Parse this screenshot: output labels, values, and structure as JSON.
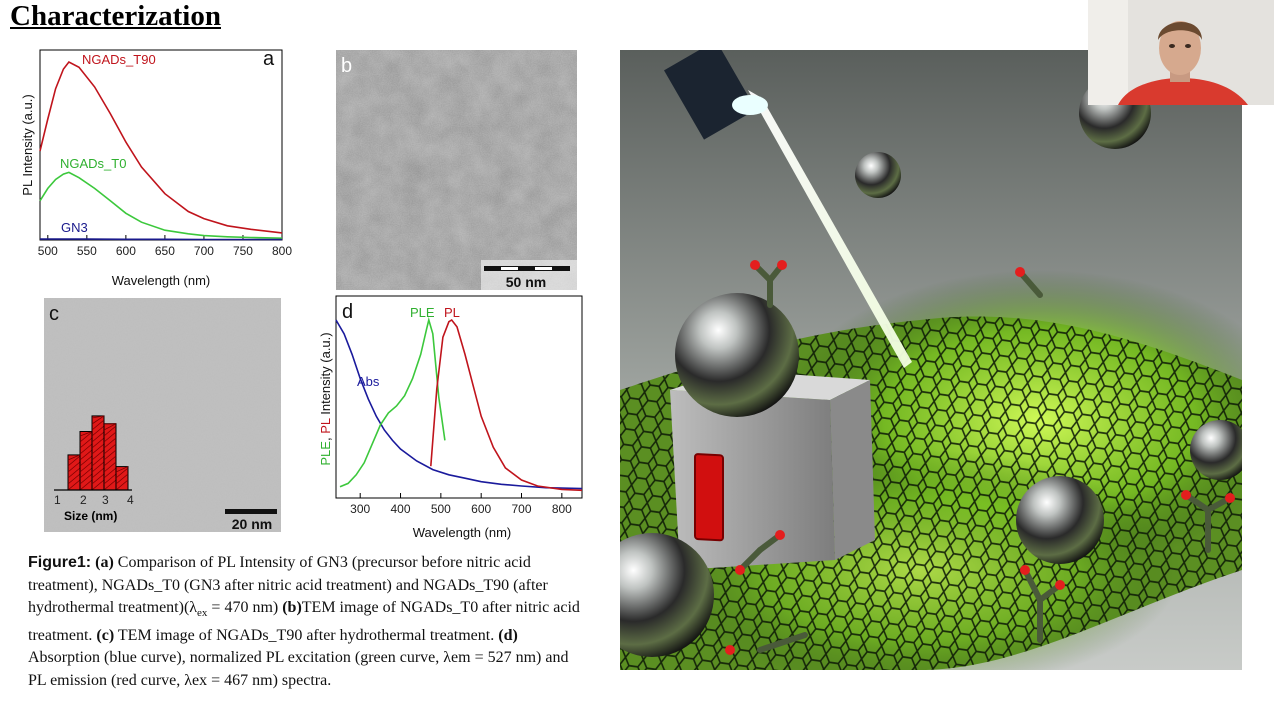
{
  "slide": {
    "title": "Characterization"
  },
  "figure": {
    "panel_a": {
      "letter": "a",
      "xlabel": "Wavelength (nm)",
      "ylabel": "PL Intensity (a.u.)",
      "xticks": [
        "500",
        "550",
        "600",
        "650",
        "700",
        "750",
        "800"
      ],
      "series_labels": [
        "NGADs_T90",
        "NGADs_T0",
        "GN3"
      ]
    },
    "panel_b": {
      "letter": "b",
      "scale": "50 nm"
    },
    "panel_c": {
      "letter": "c",
      "scale": "20 nm",
      "hist_xlabel": "Size (nm)",
      "hist_ticks": [
        "1",
        "2",
        "3",
        "4"
      ]
    },
    "panel_d": {
      "letter": "d",
      "xlabel": "Wavelength (nm)",
      "ylabel_ple": "PLE",
      "ylabel_sep": ", ",
      "ylabel_pl": "PL",
      "ylabel_rest": " Intensity (a.u.)",
      "xticks": [
        "300",
        "400",
        "500",
        "600",
        "700",
        "800"
      ],
      "labels": {
        "abs": "Abs",
        "ple": "PLE",
        "pl": "PL"
      }
    }
  },
  "caption": {
    "head": "Figure1:",
    "a_tag": "(a)",
    "a_text": " Comparison of PL Intensity of GN3 (precursor before nitric acid treatment), NGADs_T0 (GN3 after nitric acid treatment) and NGADs_T90 (after hydrothermal treatment)(λ",
    "a_sub": "ex",
    "a_tail": " = 470 nm) ",
    "b_tag": "(b)",
    "b_text": "TEM image of NGADs_T0 after nitric acid treatment. ",
    "c_tag": "(c)",
    "c_text": " TEM image of NGADs_T90 after hydrothermal treatment. ",
    "d_tag": "(d)",
    "d_text": " Absorption (blue curve), normalized PL excitation (green curve, λem = 527 nm) and PL emission (red curve, λex = 467 nm) spectra."
  },
  "chart_data": [
    {
      "type": "line",
      "panel": "a",
      "xlabel": "Wavelength (nm)",
      "ylabel": "PL Intensity (a.u.)",
      "xlim": [
        490,
        800
      ],
      "ylim": [
        0,
        1
      ],
      "series": [
        {
          "name": "NGADs_T90",
          "color": "#c0141c",
          "x": [
            490,
            500,
            510,
            520,
            527,
            540,
            560,
            580,
            600,
            620,
            650,
            680,
            700,
            730,
            760,
            800
          ],
          "y": [
            0.5,
            0.68,
            0.85,
            0.96,
            1.0,
            0.97,
            0.86,
            0.71,
            0.55,
            0.41,
            0.26,
            0.16,
            0.12,
            0.08,
            0.06,
            0.04
          ]
        },
        {
          "name": "NGADs_T0",
          "color": "#3cc83c",
          "x": [
            490,
            500,
            510,
            520,
            527,
            540,
            560,
            580,
            600,
            620,
            650,
            680,
            700,
            730,
            760,
            800
          ],
          "y": [
            0.22,
            0.29,
            0.34,
            0.37,
            0.38,
            0.35,
            0.29,
            0.22,
            0.15,
            0.1,
            0.055,
            0.035,
            0.025,
            0.018,
            0.014,
            0.01
          ]
        },
        {
          "name": "GN3",
          "color": "#1a1a8c",
          "x": [
            490,
            550,
            600,
            650,
            700,
            750,
            800
          ],
          "y": [
            0.005,
            0.005,
            0.004,
            0.004,
            0.003,
            0.003,
            0.003
          ]
        }
      ]
    },
    {
      "type": "bar",
      "panel": "c-inset",
      "xlabel": "Size (nm)",
      "categories": [
        "1.5",
        "2.0",
        "2.5",
        "3.0",
        "3.5"
      ],
      "values": [
        0.45,
        0.75,
        0.95,
        0.85,
        0.3
      ],
      "color": "#e01818"
    },
    {
      "type": "line",
      "panel": "d",
      "xlabel": "Wavelength (nm)",
      "xlim": [
        240,
        850
      ],
      "ylim": [
        0,
        1
      ],
      "series": [
        {
          "name": "Abs",
          "color": "#1a1a9c",
          "x": [
            240,
            260,
            280,
            300,
            320,
            340,
            360,
            380,
            400,
            440,
            480,
            520,
            560,
            600,
            650,
            700,
            760,
            850
          ],
          "y": [
            1.0,
            0.92,
            0.8,
            0.66,
            0.54,
            0.44,
            0.36,
            0.3,
            0.25,
            0.18,
            0.13,
            0.1,
            0.08,
            0.06,
            0.045,
            0.035,
            0.025,
            0.02
          ]
        },
        {
          "name": "PLE",
          "color": "#3cc83c",
          "x": [
            250,
            270,
            290,
            310,
            330,
            350,
            370,
            390,
            410,
            430,
            450,
            465,
            470,
            480,
            495,
            510
          ],
          "y": [
            0.03,
            0.05,
            0.1,
            0.17,
            0.28,
            0.39,
            0.46,
            0.5,
            0.56,
            0.66,
            0.8,
            0.95,
            1.0,
            0.92,
            0.55,
            0.3
          ]
        },
        {
          "name": "PL",
          "color": "#c0141c",
          "x": [
            475,
            490,
            505,
            520,
            527,
            540,
            560,
            580,
            600,
            630,
            660,
            700,
            740,
            800,
            850
          ],
          "y": [
            0.15,
            0.6,
            0.9,
            0.99,
            1.0,
            0.96,
            0.8,
            0.62,
            0.44,
            0.26,
            0.14,
            0.07,
            0.035,
            0.015,
            0.01
          ]
        }
      ]
    }
  ]
}
